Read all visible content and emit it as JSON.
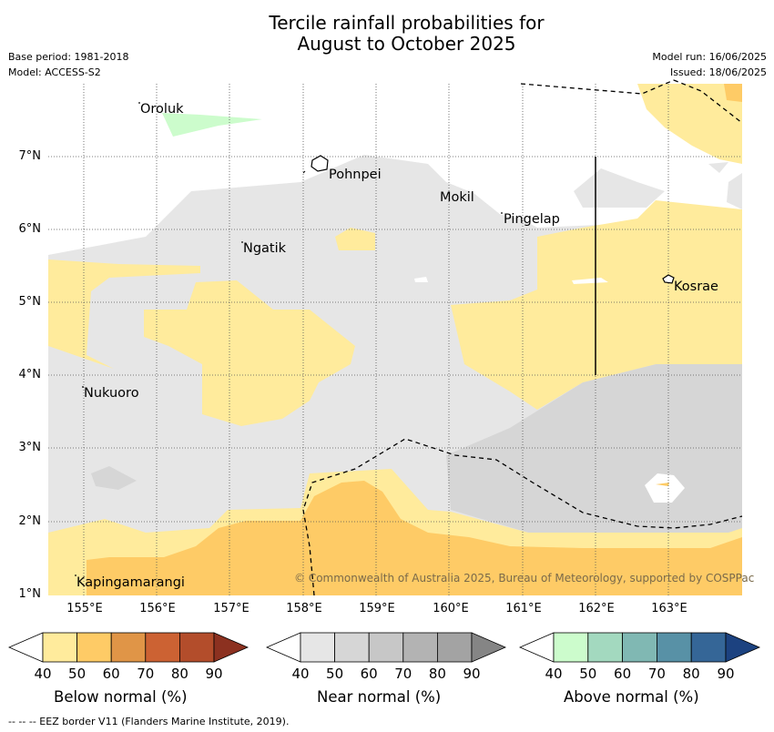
{
  "title_line1": "Tercile rainfall probabilities for",
  "title_line2": "August to October 2025",
  "meta": {
    "base_period": "Base period: 1981-2018",
    "model": "Model: ACCESS-S2",
    "model_run": "Model run: 16/06/2025",
    "issued": "Issued: 18/06/2025"
  },
  "axes": {
    "y_labels": [
      "7°N",
      "6°N",
      "5°N",
      "4°N",
      "3°N",
      "2°N",
      "1°N"
    ],
    "x_labels": [
      "155°E",
      "156°E",
      "157°E",
      "158°E",
      "159°E",
      "160°E",
      "161°E",
      "162°E",
      "163°E"
    ]
  },
  "places": {
    "oroluk": "Oroluk",
    "pohnpei": "Pohnpei",
    "mokil": "Mokil",
    "pingelap": "Pingelap",
    "ngatik": "Ngatik",
    "kosrae": "Kosrae",
    "nukuoro": "Nukuoro",
    "kapingamarangi": "Kapingamarangi"
  },
  "copyright": "© Commonwealth of Australia 2025, Bureau of Meteorology, supported by COSPPac",
  "legends": {
    "below": {
      "title": "Below normal (%)",
      "ticks": [
        "40",
        "50",
        "60",
        "70",
        "80",
        "90"
      ],
      "colors": [
        "#ffeb9c",
        "#fecb66",
        "#e09547",
        "#cc6233",
        "#b34d2b",
        "#8c3120"
      ]
    },
    "near": {
      "title": "Near normal (%)",
      "ticks": [
        "40",
        "50",
        "60",
        "70",
        "80",
        "90"
      ],
      "colors": [
        "#e6e6e6",
        "#d6d6d6",
        "#c7c7c7",
        "#b3b3b3",
        "#a3a3a3",
        "#858585"
      ]
    },
    "above": {
      "title": "Above normal (%)",
      "ticks": [
        "40",
        "50",
        "60",
        "70",
        "80",
        "90"
      ],
      "colors": [
        "#ccfccc",
        "#a3d9bf",
        "#80b8b3",
        "#5891a6",
        "#356697",
        "#1c4280"
      ]
    }
  },
  "eez_note": "--  --  -- EEZ border V11 (Flanders Marine Institute, 2019)."
}
